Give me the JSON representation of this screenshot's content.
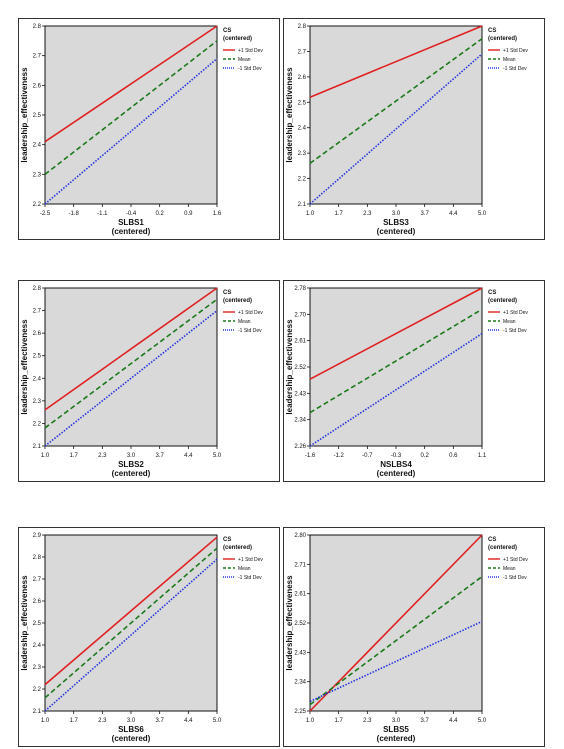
{
  "colors": {
    "plot_bg": "#d9d9d9",
    "plus": "#e02020",
    "mean": "#1a7a1a",
    "minus": "#2233dd"
  },
  "legend": {
    "title": "CS",
    "subtitle": "(centered)",
    "entries": [
      "+1 Std Dev",
      "Mean",
      "-1 Std Dev"
    ]
  },
  "chart_data": [
    {
      "type": "line",
      "xlabel": "SLBS1",
      "xlabel2": "(centered)",
      "ylabel": "leadership_effectiveness",
      "xticks": [
        "-2.5",
        "-1.8",
        "-1.1",
        "-0.4",
        "0.2",
        "0.9",
        "1.6"
      ],
      "yticks": [
        "2.2",
        "2.3",
        "2.4",
        "2.5",
        "2.6",
        "2.7",
        "2.8"
      ],
      "xlim": [
        -2.5,
        1.6
      ],
      "ylim": [
        2.2,
        2.8
      ],
      "series": [
        {
          "name": "+1 Std Dev",
          "x": [
            -2.5,
            1.6
          ],
          "y": [
            2.41,
            2.8
          ]
        },
        {
          "name": "Mean",
          "x": [
            -2.5,
            1.6
          ],
          "y": [
            2.3,
            2.75
          ]
        },
        {
          "name": "-1 Std Dev",
          "x": [
            -2.5,
            1.6
          ],
          "y": [
            2.2,
            2.69
          ]
        }
      ]
    },
    {
      "type": "line",
      "xlabel": "SLBS3",
      "xlabel2": "(centered)",
      "ylabel": "leadership_effectiveness",
      "xticks": [
        "1.0",
        "1.7",
        "2.3",
        "3.0",
        "3.7",
        "4.4",
        "5.0"
      ],
      "yticks": [
        "2.1",
        "2.2",
        "2.3",
        "2.4",
        "2.5",
        "2.6",
        "2.7",
        "2.8"
      ],
      "xlim": [
        1.0,
        5.0
      ],
      "ylim": [
        2.1,
        2.8
      ],
      "series": [
        {
          "name": "+1 Std Dev",
          "x": [
            1.0,
            5.0
          ],
          "y": [
            2.52,
            2.8
          ]
        },
        {
          "name": "Mean",
          "x": [
            1.0,
            5.0
          ],
          "y": [
            2.26,
            2.75
          ]
        },
        {
          "name": "-1 Std Dev",
          "x": [
            1.0,
            5.0
          ],
          "y": [
            2.1,
            2.69
          ]
        }
      ]
    },
    {
      "type": "line",
      "xlabel": "SLBS2",
      "xlabel2": "(centered)",
      "ylabel": "leadership_effectiveness",
      "xticks": [
        "1.0",
        "1.7",
        "2.3",
        "3.0",
        "3.7",
        "4.4",
        "5.0"
      ],
      "yticks": [
        "2.1",
        "2.2",
        "2.3",
        "2.4",
        "2.5",
        "2.6",
        "2.7",
        "2.8"
      ],
      "xlim": [
        1.0,
        5.0
      ],
      "ylim": [
        2.1,
        2.8
      ],
      "series": [
        {
          "name": "+1 Std Dev",
          "x": [
            1.0,
            5.0
          ],
          "y": [
            2.26,
            2.8
          ]
        },
        {
          "name": "Mean",
          "x": [
            1.0,
            5.0
          ],
          "y": [
            2.18,
            2.75
          ]
        },
        {
          "name": "-1 Std Dev",
          "x": [
            1.0,
            5.0
          ],
          "y": [
            2.1,
            2.7
          ]
        }
      ]
    },
    {
      "type": "line",
      "xlabel": "NSLBS4",
      "xlabel2": "(centered)",
      "ylabel": "leadership_effectiveness",
      "xticks": [
        "-1.6",
        "-1.2",
        "-0.7",
        "-0.3",
        "0.2",
        "0.6",
        "1.1"
      ],
      "yticks": [
        "2.26",
        "2.34",
        "2.43",
        "2.52",
        "2.61",
        "2.70",
        "2.78"
      ],
      "xlim": [
        -1.6,
        1.1
      ],
      "ylim": [
        2.26,
        2.78
      ],
      "series": [
        {
          "name": "+1 Std Dev",
          "x": [
            -1.6,
            1.1
          ],
          "y": [
            2.48,
            2.78
          ]
        },
        {
          "name": "Mean",
          "x": [
            -1.6,
            1.1
          ],
          "y": [
            2.37,
            2.71
          ]
        },
        {
          "name": "-1 Std Dev",
          "x": [
            -1.6,
            1.1
          ],
          "y": [
            2.26,
            2.63
          ]
        }
      ]
    },
    {
      "type": "line",
      "xlabel": "SLBS6",
      "xlabel2": "(centered)",
      "ylabel": "leadership_effectiveness",
      "xticks": [
        "1.0",
        "1.7",
        "2.3",
        "3.0",
        "3.7",
        "4.4",
        "5.0"
      ],
      "yticks": [
        "2.1",
        "2.2",
        "2.3",
        "2.4",
        "2.5",
        "2.6",
        "2.7",
        "2.8",
        "2.9"
      ],
      "xlim": [
        1.0,
        5.0
      ],
      "ylim": [
        2.1,
        2.9
      ],
      "series": [
        {
          "name": "+1 Std Dev",
          "x": [
            1.0,
            5.0
          ],
          "y": [
            2.22,
            2.89
          ]
        },
        {
          "name": "Mean",
          "x": [
            1.0,
            5.0
          ],
          "y": [
            2.16,
            2.84
          ]
        },
        {
          "name": "-1 Std Dev",
          "x": [
            1.0,
            5.0
          ],
          "y": [
            2.1,
            2.79
          ]
        }
      ]
    },
    {
      "type": "line",
      "xlabel": "SLBS5",
      "xlabel2": "(centered)",
      "ylabel": "leadership_effectiveness",
      "xticks": [
        "1.0",
        "1.7",
        "2.3",
        "3.0",
        "3.7",
        "4.4",
        "5.0"
      ],
      "yticks": [
        "2.25",
        "2.34",
        "2.43",
        "2.52",
        "2.61",
        "2.71",
        "2.80"
      ],
      "xlim": [
        1.0,
        5.0
      ],
      "ylim": [
        2.25,
        2.8
      ],
      "series": [
        {
          "name": "+1 Std Dev",
          "x": [
            1.0,
            5.0
          ],
          "y": [
            2.25,
            2.8
          ]
        },
        {
          "name": "Mean",
          "x": [
            1.0,
            5.0
          ],
          "y": [
            2.27,
            2.67
          ]
        },
        {
          "name": "-1 Std Dev",
          "x": [
            1.0,
            5.0
          ],
          "y": [
            2.28,
            2.53
          ]
        }
      ]
    }
  ]
}
